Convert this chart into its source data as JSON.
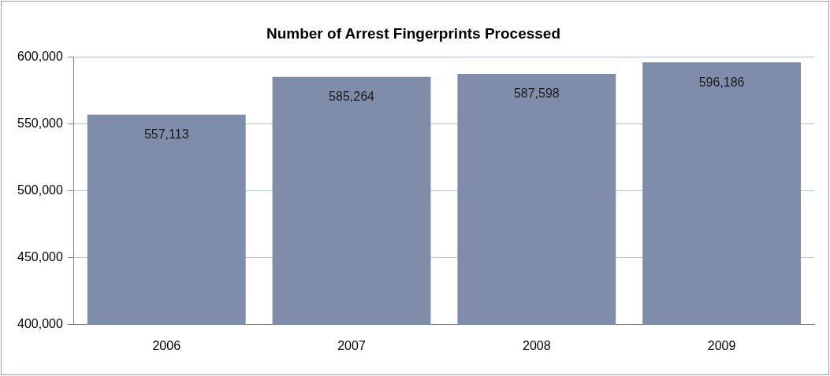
{
  "chart_data": {
    "type": "bar",
    "title": "Number of Arrest Fingerprints Processed",
    "categories": [
      "2006",
      "2007",
      "2008",
      "2009"
    ],
    "values": [
      557113,
      585264,
      587598,
      596186
    ],
    "value_labels": [
      "557,113",
      "585,264",
      "587,598",
      "596,186"
    ],
    "color": "#7f8daa",
    "ylim": [
      400000,
      600000
    ],
    "yticks": [
      {
        "value": 400000,
        "label": "400,000"
      },
      {
        "value": 450000,
        "label": "450,000"
      },
      {
        "value": 500000,
        "label": "500,000"
      },
      {
        "value": 550000,
        "label": "550,000"
      },
      {
        "value": 600000,
        "label": "600,000"
      }
    ],
    "grid": "y"
  }
}
